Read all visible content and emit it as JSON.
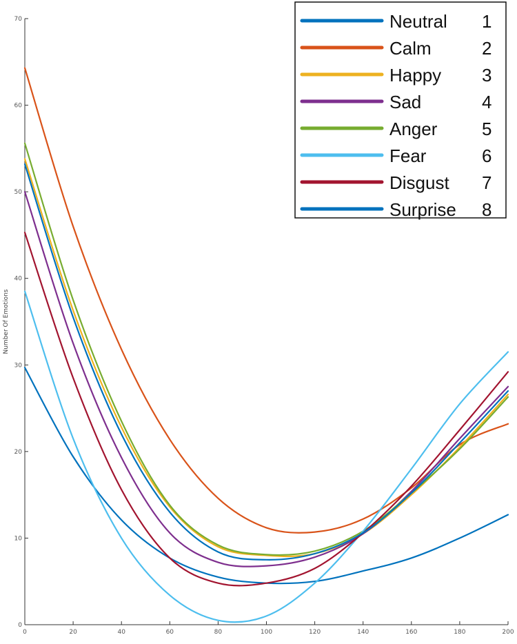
{
  "chart_data": {
    "type": "line",
    "title": "",
    "xlabel": "",
    "ylabel": "Number Of Emotions",
    "xlim": [
      0,
      200
    ],
    "ylim": [
      0,
      70
    ],
    "x_ticks": [
      0,
      20,
      40,
      60,
      80,
      100,
      120,
      140,
      160,
      180,
      200
    ],
    "x_tick_labels": [
      "0",
      "20",
      "40",
      "60",
      "80",
      "100",
      "120",
      "140",
      "160",
      "180",
      "200"
    ],
    "y_ticks": [
      0,
      10,
      20,
      30,
      40,
      50,
      60,
      70
    ],
    "y_tick_labels": [
      "0",
      "10",
      "20",
      "30",
      "40",
      "50",
      "60",
      "70"
    ],
    "grid": false,
    "legend_position": "top-right",
    "x": [
      0,
      20,
      40,
      60,
      80,
      100,
      120,
      140,
      160,
      180,
      200
    ],
    "series": [
      {
        "name": "Neutral",
        "code": "1",
        "color": "#0072BD",
        "values": [
          29.7,
          19.4,
          12.1,
          7.7,
          5.5,
          4.8,
          5.0,
          6.2,
          7.7,
          10.0,
          12.7
        ]
      },
      {
        "name": "Calm",
        "code": "2",
        "color": "#D95319",
        "values": [
          64.3,
          46.0,
          31.8,
          21.4,
          14.6,
          11.2,
          10.7,
          12.2,
          15.8,
          20.8,
          23.2
        ]
      },
      {
        "name": "Happy",
        "code": "3",
        "color": "#EDB120",
        "values": [
          53.8,
          36.3,
          22.8,
          13.6,
          9.0,
          8.0,
          8.2,
          10.5,
          15.0,
          20.5,
          26.6
        ]
      },
      {
        "name": "Sad",
        "code": "4",
        "color": "#7E2F8E",
        "values": [
          50.0,
          32.5,
          19.3,
          10.6,
          7.2,
          6.8,
          7.8,
          10.5,
          15.4,
          21.5,
          27.5
        ]
      },
      {
        "name": "Anger",
        "code": "5",
        "color": "#77AC30",
        "values": [
          55.6,
          37.5,
          23.5,
          13.8,
          9.2,
          8.1,
          8.5,
          10.8,
          15.2,
          20.3,
          26.3
        ]
      },
      {
        "name": "Fear",
        "code": "6",
        "color": "#4DBEEE",
        "values": [
          38.5,
          21.5,
          10.0,
          3.4,
          0.5,
          1.0,
          4.8,
          10.8,
          18.0,
          25.5,
          31.5
        ]
      },
      {
        "name": "Disgust",
        "code": "7",
        "color": "#A2142F",
        "values": [
          45.3,
          28.5,
          15.6,
          7.7,
          4.8,
          4.8,
          6.5,
          10.6,
          16.0,
          22.5,
          29.2
        ]
      },
      {
        "name": "Surprise",
        "code": "8",
        "color": "#0072BD",
        "values": [
          53.2,
          35.5,
          22.0,
          13.0,
          8.4,
          7.5,
          8.2,
          10.6,
          15.2,
          21.0,
          27.0
        ]
      }
    ]
  }
}
